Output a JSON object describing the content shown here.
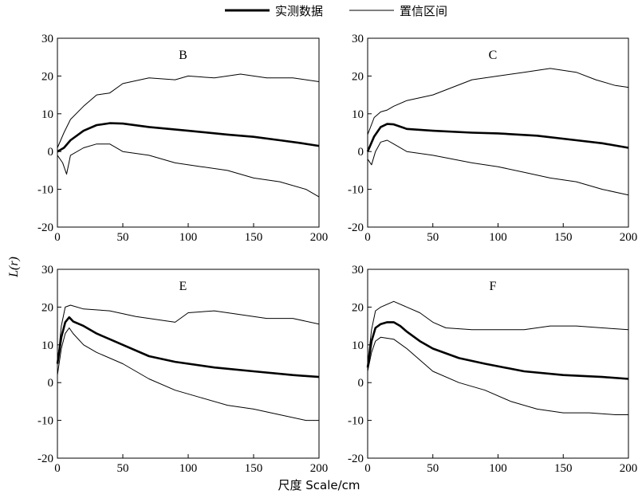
{
  "legend": {
    "observed_label": "实测数据",
    "ci_label": "置信区间"
  },
  "axes": {
    "xlabel": "尺度 Scale/cm",
    "ylabel": "L(r)"
  },
  "chart_data": [
    {
      "type": "line",
      "title": "B",
      "xlim": [
        0,
        200
      ],
      "ylim": [
        -20,
        30
      ],
      "xticks": [
        0,
        50,
        100,
        150,
        200
      ],
      "yticks": [
        -20,
        -10,
        0,
        10,
        20,
        30
      ],
      "series": [
        {
          "name": "实测数据",
          "x": [
            0,
            5,
            10,
            20,
            30,
            40,
            50,
            70,
            100,
            130,
            150,
            170,
            185,
            200
          ],
          "y": [
            0,
            1,
            3,
            5.5,
            7,
            7.5,
            7.4,
            6.5,
            5.5,
            4.5,
            3.9,
            3,
            2.3,
            1.5
          ]
        },
        {
          "name": "置信区间",
          "x": [
            0,
            5,
            10,
            20,
            30,
            40,
            50,
            70,
            90,
            100,
            120,
            140,
            160,
            180,
            190,
            200
          ],
          "y": [
            1,
            5,
            8.5,
            12,
            15,
            15.5,
            18,
            19.5,
            19,
            20,
            19.5,
            20.5,
            19.5,
            19.5,
            19,
            18.5
          ]
        },
        {
          "name": "置信区间",
          "x": [
            0,
            4,
            7,
            10,
            20,
            30,
            40,
            50,
            70,
            90,
            110,
            130,
            150,
            170,
            190,
            200
          ],
          "y": [
            -1,
            -3,
            -6,
            -1,
            1,
            2,
            2,
            0,
            -1,
            -3,
            -4,
            -5,
            -7,
            -8,
            -10,
            -12
          ]
        }
      ]
    },
    {
      "type": "line",
      "title": "C",
      "xlim": [
        0,
        200
      ],
      "ylim": [
        -20,
        30
      ],
      "xticks": [
        0,
        50,
        100,
        150,
        200
      ],
      "yticks": [
        -20,
        -10,
        0,
        10,
        20,
        30
      ],
      "series": [
        {
          "name": "实测数据",
          "x": [
            0,
            5,
            10,
            15,
            20,
            30,
            50,
            80,
            100,
            130,
            160,
            180,
            200
          ],
          "y": [
            0,
            4,
            6.5,
            7.3,
            7.2,
            6,
            5.5,
            5,
            4.8,
            4.2,
            3,
            2.2,
            1
          ]
        },
        {
          "name": "置信区间",
          "x": [
            0,
            5,
            10,
            15,
            20,
            30,
            50,
            80,
            100,
            120,
            140,
            160,
            175,
            190,
            200
          ],
          "y": [
            4.5,
            9,
            10.5,
            11,
            12,
            13.5,
            15,
            19,
            20,
            21,
            22,
            21,
            19,
            17.5,
            17
          ]
        },
        {
          "name": "置信区间",
          "x": [
            0,
            3,
            6,
            10,
            15,
            20,
            30,
            50,
            80,
            100,
            120,
            140,
            160,
            180,
            200
          ],
          "y": [
            -2,
            -3.5,
            0,
            2.5,
            3,
            2,
            0,
            -1,
            -3,
            -4,
            -5.5,
            -7,
            -8,
            -10,
            -11.5
          ]
        }
      ]
    },
    {
      "type": "line",
      "title": "E",
      "xlim": [
        0,
        200
      ],
      "ylim": [
        -20,
        30
      ],
      "xticks": [
        0,
        50,
        100,
        150,
        200
      ],
      "yticks": [
        -20,
        -10,
        0,
        10,
        20,
        30
      ],
      "series": [
        {
          "name": "实测数据",
          "x": [
            0,
            3,
            6,
            9,
            12,
            20,
            30,
            40,
            50,
            70,
            90,
            120,
            150,
            180,
            200
          ],
          "y": [
            5,
            12,
            16,
            17.3,
            16.2,
            15,
            13,
            11.5,
            10,
            7,
            5.5,
            4,
            3,
            2,
            1.5
          ]
        },
        {
          "name": "置信区间",
          "x": [
            0,
            3,
            6,
            10,
            20,
            40,
            60,
            80,
            90,
            100,
            120,
            140,
            160,
            180,
            200
          ],
          "y": [
            5,
            15,
            20,
            20.5,
            19.5,
            19,
            17.5,
            16.5,
            16,
            18.5,
            19,
            18,
            17,
            17,
            15.5
          ]
        },
        {
          "name": "置信区间",
          "x": [
            0,
            3,
            6,
            9,
            12,
            20,
            30,
            50,
            70,
            90,
            110,
            130,
            150,
            170,
            190,
            200
          ],
          "y": [
            2,
            9,
            13,
            14.5,
            13,
            10,
            8,
            5,
            1,
            -2,
            -4,
            -6,
            -7,
            -8.5,
            -10,
            -10
          ]
        }
      ]
    },
    {
      "type": "line",
      "title": "F",
      "xlim": [
        0,
        200
      ],
      "ylim": [
        -20,
        30
      ],
      "xticks": [
        0,
        50,
        100,
        150,
        200
      ],
      "yticks": [
        -20,
        -10,
        0,
        10,
        20,
        30
      ],
      "series": [
        {
          "name": "实测数据",
          "x": [
            0,
            3,
            6,
            10,
            15,
            20,
            25,
            30,
            40,
            50,
            70,
            90,
            120,
            150,
            180,
            200
          ],
          "y": [
            4,
            11,
            14.5,
            15.5,
            16,
            16,
            15,
            13.5,
            11,
            9,
            6.5,
            5,
            3,
            2,
            1.5,
            1
          ]
        },
        {
          "name": "置信区间",
          "x": [
            0,
            3,
            6,
            10,
            20,
            30,
            40,
            50,
            60,
            80,
            100,
            120,
            140,
            160,
            180,
            200
          ],
          "y": [
            5,
            14,
            19,
            20,
            21.5,
            20,
            18.5,
            16,
            14.5,
            14,
            14,
            14,
            15,
            15,
            14.5,
            14
          ]
        },
        {
          "name": "置信区间",
          "x": [
            0,
            3,
            6,
            10,
            20,
            30,
            50,
            70,
            90,
            110,
            130,
            150,
            170,
            190,
            200
          ],
          "y": [
            3,
            8,
            11,
            12,
            11.5,
            9,
            3,
            0,
            -2,
            -5,
            -7,
            -8,
            -8,
            -8.5,
            -8.5
          ]
        }
      ]
    }
  ]
}
